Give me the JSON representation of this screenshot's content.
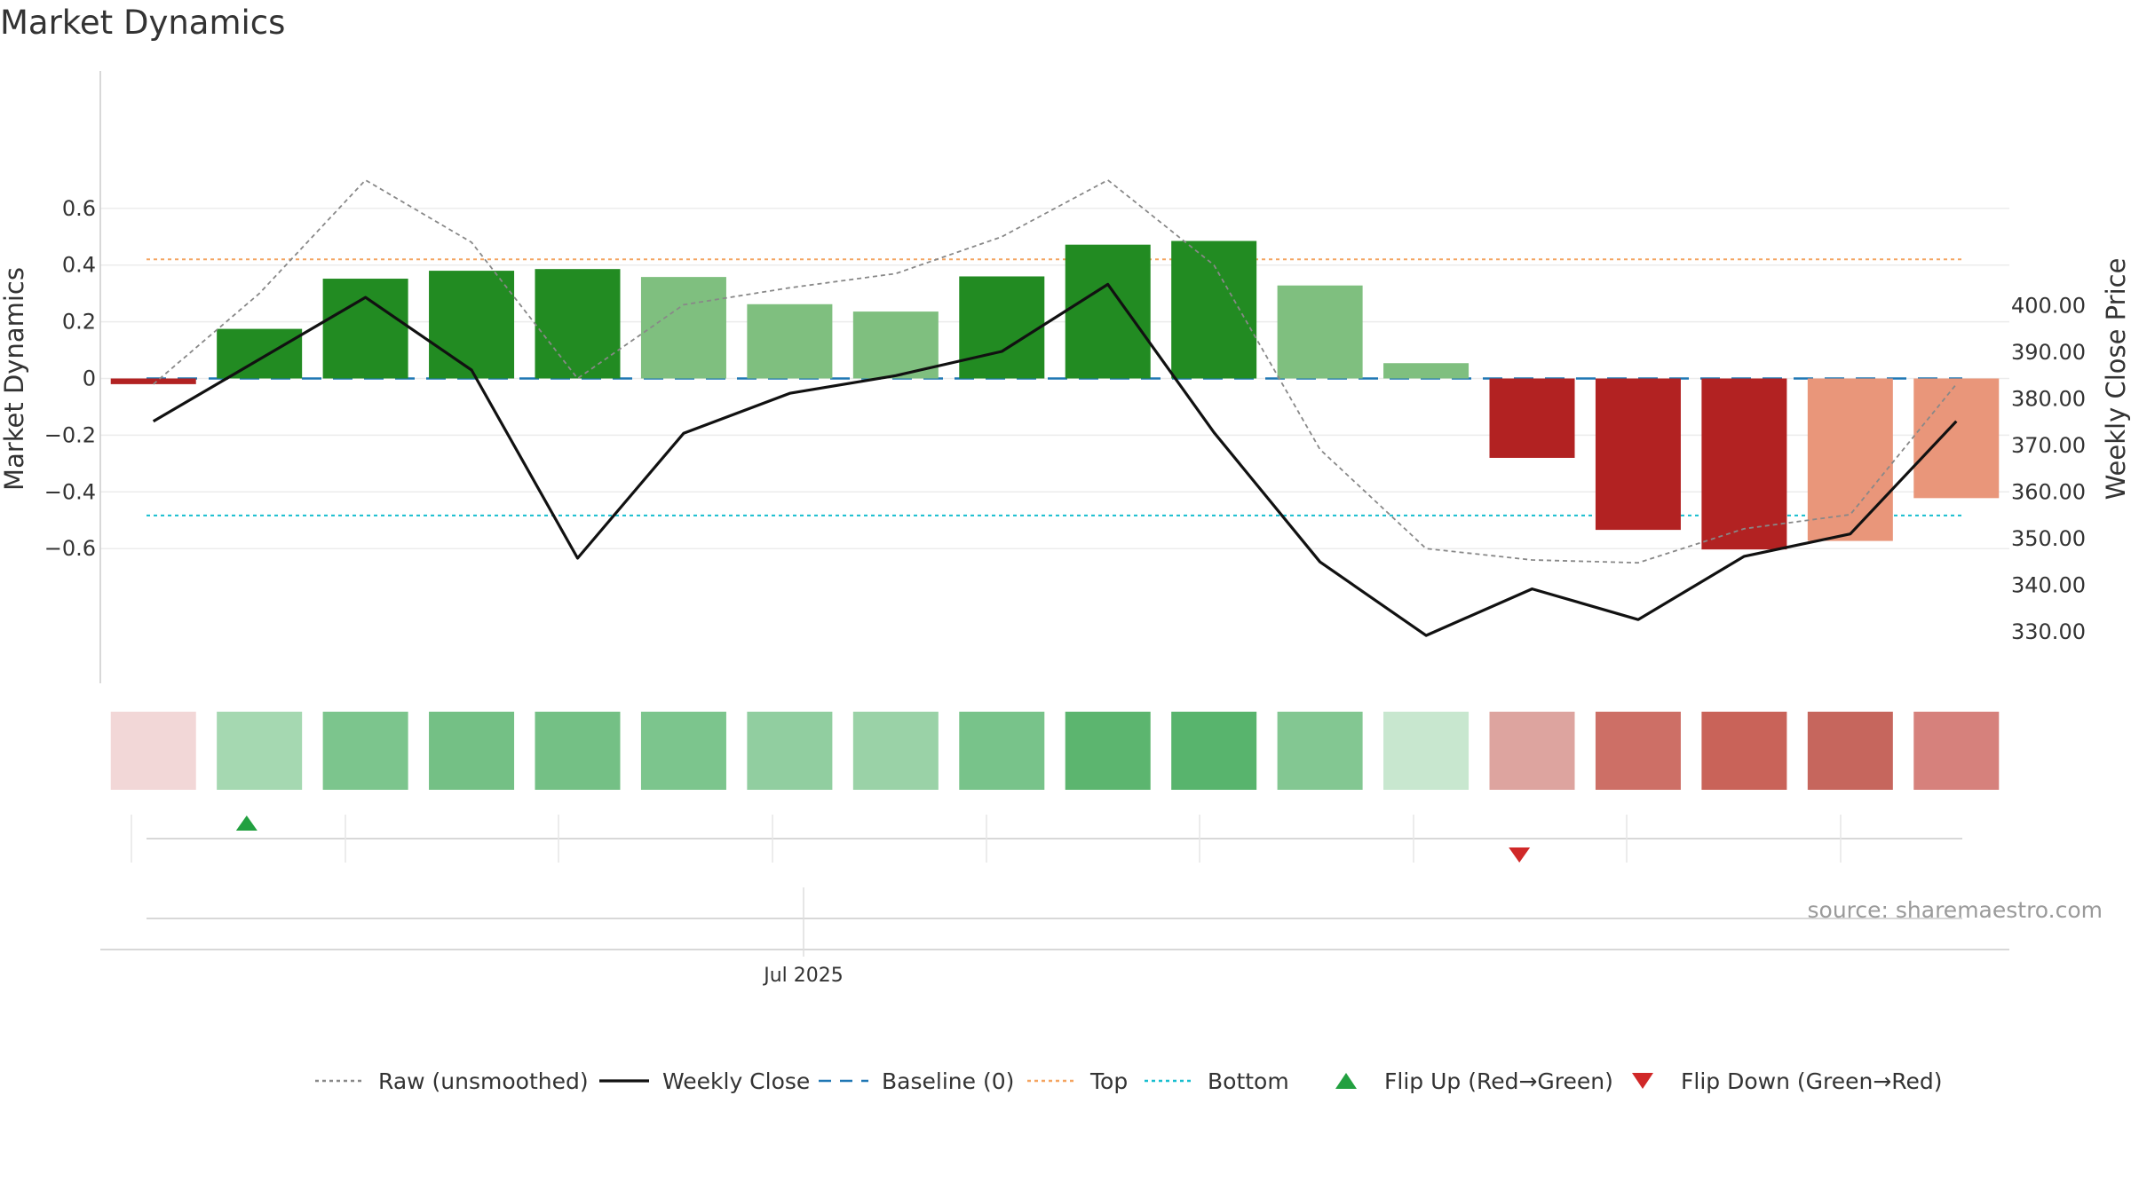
{
  "chart_data": {
    "type": "bar",
    "title": "Market Dynamics",
    "ylabel_left": "Market Dynamics",
    "ylabel_right": "Weekly Close Price",
    "source": "source: sharemaestro.com",
    "xaxis_tick_label": "Jul 2025",
    "ylim_left": [
      -0.64,
      0.66
    ],
    "ylim_right": [
      326.9,
      404.6
    ],
    "left_ticks": [
      {
        "value": 0.6,
        "label": "0.6"
      },
      {
        "value": 0.4,
        "label": "0.4"
      },
      {
        "value": 0.2,
        "label": "0.2"
      },
      {
        "value": 0,
        "label": "0"
      },
      {
        "value": -0.2,
        "label": "−0.2"
      },
      {
        "value": -0.4,
        "label": "−0.4"
      },
      {
        "value": -0.6,
        "label": "−0.6"
      }
    ],
    "right_ticks": [
      {
        "value": 400,
        "label": "400.00"
      },
      {
        "value": 390,
        "label": "390.00"
      },
      {
        "value": 380,
        "label": "380.00"
      },
      {
        "value": 370,
        "label": "370.00"
      },
      {
        "value": 360,
        "label": "360.00"
      },
      {
        "value": 350,
        "label": "350.00"
      },
      {
        "value": 340,
        "label": "340.00"
      },
      {
        "value": 330,
        "label": "330.00"
      }
    ],
    "bars": {
      "values": [
        -0.02,
        0.175,
        0.352,
        0.38,
        0.386,
        0.358,
        0.262,
        0.236,
        0.36,
        0.472,
        0.485,
        0.328,
        0.054,
        -0.28,
        -0.534,
        -0.603,
        -0.573,
        -0.422
      ],
      "colors": [
        "#b22222",
        "#228b22",
        "#228b22",
        "#228b22",
        "#228b22",
        "#7fbf7f",
        "#7fbf7f",
        "#7fbf7f",
        "#228b22",
        "#228b22",
        "#228b22",
        "#7fbf7f",
        "#7fbf7f",
        "#b22222",
        "#b22222",
        "#b22222",
        "#e9967a",
        "#e9967a"
      ]
    },
    "series": [
      {
        "name": "Raw (unsmoothed)",
        "values": [
          -0.02,
          0.3,
          0.7,
          0.48,
          0.0,
          0.26,
          0.32,
          0.37,
          0.5,
          0.7,
          0.4,
          -0.25,
          -0.6,
          -0.64,
          -0.65,
          -0.53,
          -0.48,
          -0.02
        ]
      },
      {
        "name": "Weekly Close",
        "prices": [
          375.2,
          388.5,
          401.8,
          386.2,
          345.8,
          372.6,
          381.2,
          385.0,
          390.2,
          404.6,
          372.8,
          345.0,
          329.2,
          339.2,
          332.6,
          346.2,
          351.0,
          375.2
        ]
      },
      {
        "name": "Baseline (0)",
        "value": 0
      },
      {
        "name": "Top",
        "value": 0.42
      },
      {
        "name": "Bottom",
        "value": -0.483
      },
      {
        "name": "Flip Up (Red→Green)",
        "index": 1
      },
      {
        "name": "Flip Down (Green→Red)",
        "index": 13
      }
    ],
    "strip_colors": [
      "#f2d7d7",
      "#a5d8b1",
      "#7cc58d",
      "#74c085",
      "#74c085",
      "#7cc58d",
      "#91cea0",
      "#9ad2a7",
      "#78c38a",
      "#5cb56f",
      "#58b46d",
      "#83c792",
      "#c8e7cf",
      "#dda49f",
      "#cd6f66",
      "#c96359",
      "#c6665d",
      "#d6817c"
    ],
    "legend": [
      {
        "label": "Raw (unsmoothed)",
        "marker": "dotted-line",
        "color": "#888888"
      },
      {
        "label": "Weekly Close",
        "marker": "solid-line",
        "color": "#111111"
      },
      {
        "label": "Baseline (0)",
        "marker": "dashed-line",
        "color": "#1f77b4"
      },
      {
        "label": "Top",
        "marker": "dotted-line",
        "color": "#f4a460"
      },
      {
        "label": "Bottom",
        "marker": "dotted-line",
        "color": "#17becf"
      },
      {
        "label": "Flip Up (Red→Green)",
        "marker": "triangle-up",
        "color": "#22a040"
      },
      {
        "label": "Flip Down (Green→Red)",
        "marker": "triangle-down",
        "color": "#d02828"
      }
    ],
    "grid": true,
    "legend_position": "bottom-center"
  }
}
